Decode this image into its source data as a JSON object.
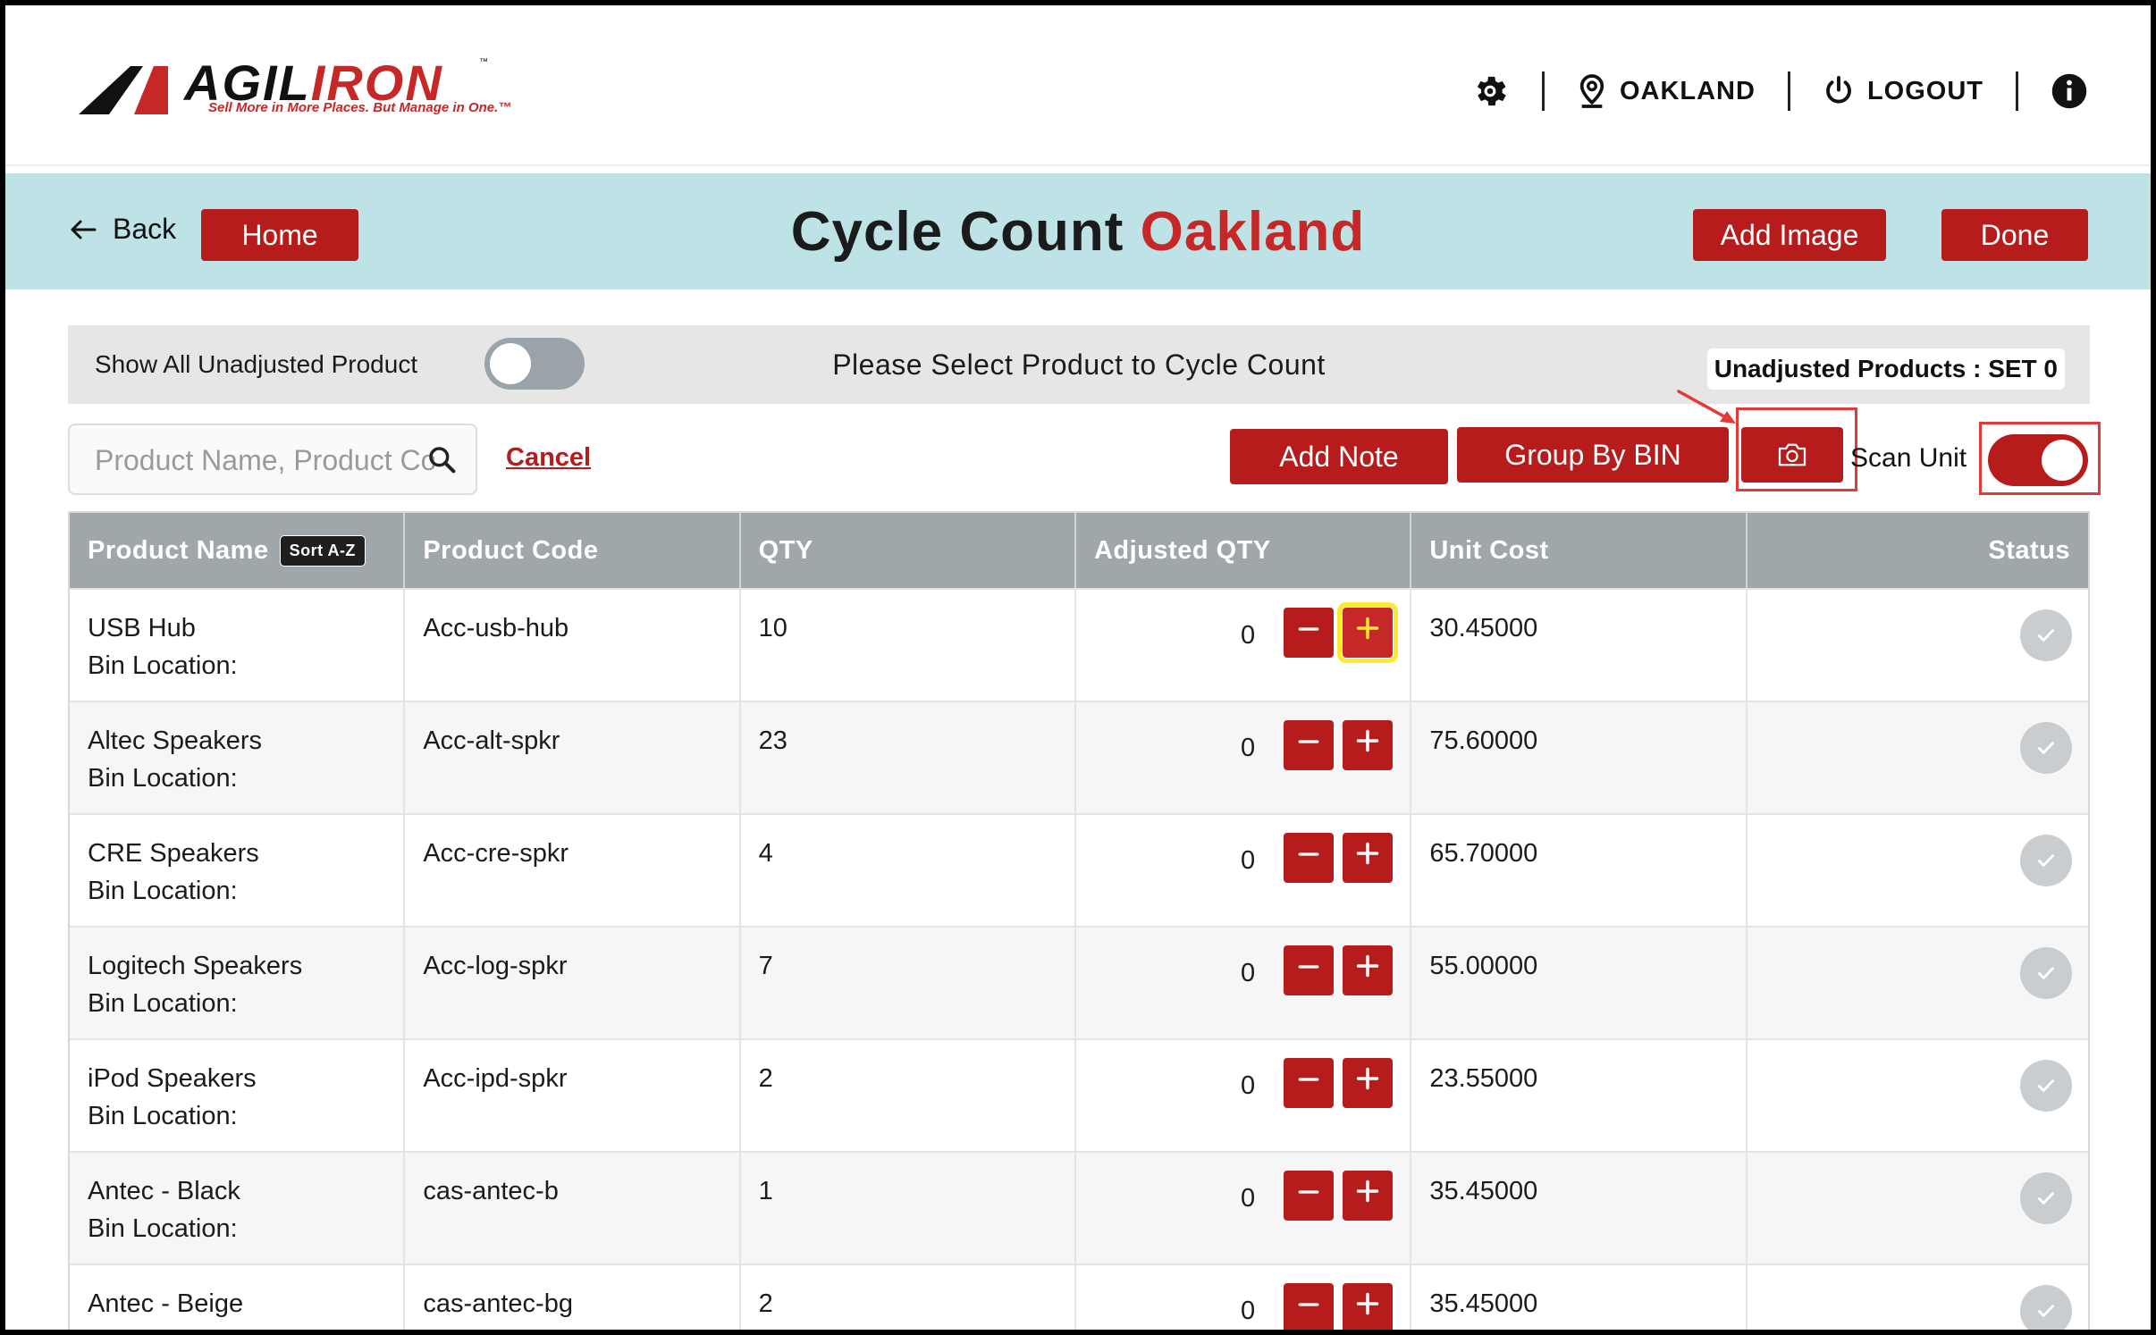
{
  "brand": {
    "word_dark": "AGIL",
    "word_red": "IRON",
    "tm": "™",
    "tagline": "Sell More in More Places. But Manage in One.™"
  },
  "topbar": {
    "location": "OAKLAND",
    "logout": "LOGOUT",
    "icons": [
      "gear-icon",
      "location-pin-icon",
      "power-icon",
      "info-icon"
    ]
  },
  "header": {
    "back": "Back",
    "home": "Home",
    "title_main": "Cycle Count",
    "title_location": "Oakland",
    "add_image": "Add Image",
    "done": "Done"
  },
  "filter": {
    "show_all_label": "Show All Unadjusted Product",
    "show_all_on": false,
    "prompt": "Please Select Product to Cycle Count",
    "unadjusted": "Unadjusted Products : SET 0"
  },
  "search": {
    "placeholder": "Product Name, Product Code",
    "cancel": "Cancel"
  },
  "actions": {
    "add_note": "Add Note",
    "group_by_bin": "Group By BIN",
    "scan_unit": "Scan Unit",
    "scan_unit_on": true
  },
  "table": {
    "headers": [
      "Product Name",
      "Product Code",
      "QTY",
      "Adjusted QTY",
      "Unit Cost",
      "Status"
    ],
    "sort_badge": "Sort A-Z",
    "bin_label": "Bin Location:",
    "rows": [
      {
        "name": "USB Hub",
        "code": "Acc-usb-hub",
        "qty": "10",
        "adjusted": "0",
        "cost": "30.45000"
      },
      {
        "name": "Altec Speakers",
        "code": "Acc-alt-spkr",
        "qty": "23",
        "adjusted": "0",
        "cost": "75.60000"
      },
      {
        "name": "CRE Speakers",
        "code": "Acc-cre-spkr",
        "qty": "4",
        "adjusted": "0",
        "cost": "65.70000"
      },
      {
        "name": "Logitech Speakers",
        "code": "Acc-log-spkr",
        "qty": "7",
        "adjusted": "0",
        "cost": "55.00000"
      },
      {
        "name": "iPod Speakers",
        "code": "Acc-ipd-spkr",
        "qty": "2",
        "adjusted": "0",
        "cost": "23.55000"
      },
      {
        "name": "Antec - Black",
        "code": "cas-antec-b",
        "qty": "1",
        "adjusted": "0",
        "cost": "35.45000"
      },
      {
        "name": "Antec - Beige",
        "code": "cas-antec-bg",
        "qty": "2",
        "adjusted": "0",
        "cost": "35.45000"
      }
    ]
  },
  "colors": {
    "brand_red": "#b71c1c",
    "band": "#bde3e6",
    "header_gray": "#a0a7ab",
    "highlight": "#ffe834",
    "annotation": "#e53935"
  }
}
